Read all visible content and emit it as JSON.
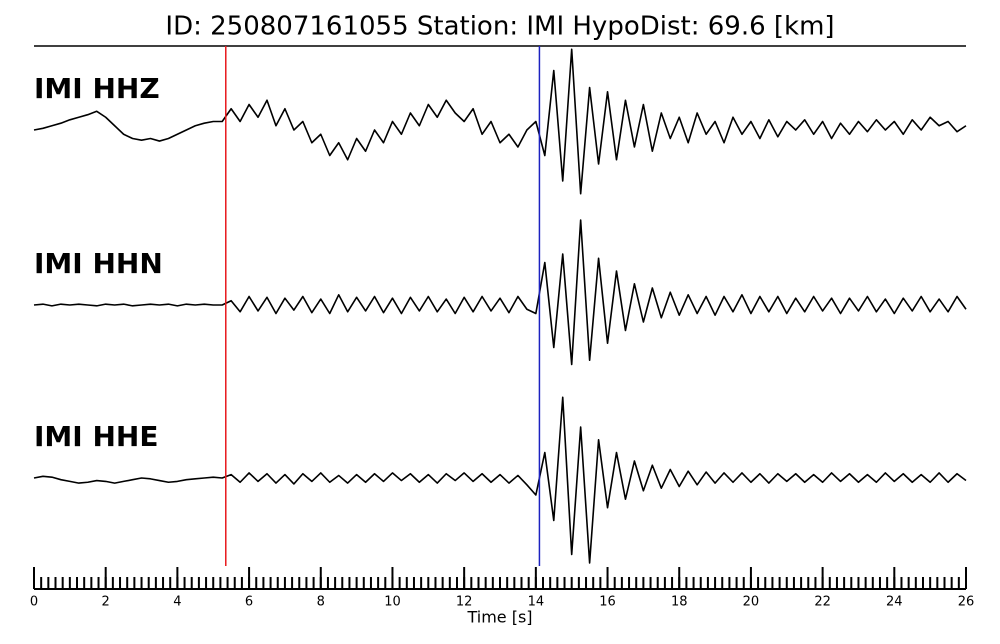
{
  "chart_data": {
    "type": "seismogram",
    "title": "ID: 250807161055   Station: IMI   HypoDist:     69.6 [km]",
    "xlabel": "Time [s]",
    "xlim": [
      0,
      26
    ],
    "xticks": [
      0,
      2,
      4,
      6,
      8,
      10,
      12,
      14,
      16,
      18,
      20,
      22,
      24,
      26
    ],
    "minor_tick_step": 0.2,
    "ylim": [
      -1,
      1
    ],
    "label_color": "#4e9a06",
    "picks": [
      {
        "time": 5.35,
        "color": "#e8191c"
      },
      {
        "time": 14.1,
        "color": "#1c22c0"
      }
    ],
    "x": [
      0,
      0.25,
      0.5,
      0.75,
      1,
      1.25,
      1.5,
      1.75,
      2,
      2.25,
      2.5,
      2.75,
      3,
      3.25,
      3.5,
      3.75,
      4,
      4.25,
      4.5,
      4.75,
      5,
      5.25,
      5.5,
      5.75,
      6,
      6.25,
      6.5,
      6.75,
      7,
      7.25,
      7.5,
      7.75,
      8,
      8.25,
      8.5,
      8.75,
      9,
      9.25,
      9.5,
      9.75,
      10,
      10.25,
      10.5,
      10.75,
      11,
      11.25,
      11.5,
      11.75,
      12,
      12.25,
      12.5,
      12.75,
      13,
      13.25,
      13.5,
      13.75,
      14,
      14.25,
      14.5,
      14.75,
      15,
      15.25,
      15.5,
      15.75,
      16,
      16.25,
      16.5,
      16.75,
      17,
      17.25,
      17.5,
      17.75,
      18,
      18.25,
      18.5,
      18.75,
      19,
      19.25,
      19.5,
      19.75,
      20,
      20.25,
      20.5,
      20.75,
      21,
      21.25,
      21.5,
      21.75,
      22,
      22.25,
      22.5,
      22.75,
      23,
      23.25,
      23.5,
      23.75,
      24,
      24.25,
      24.5,
      24.75,
      25,
      25.25,
      25.5,
      25.75,
      26
    ],
    "series": [
      {
        "name": "IMI HHZ",
        "color": "#000000",
        "values": [
          0,
          0.02,
          0.05,
          0.08,
          0.12,
          0.15,
          0.18,
          0.22,
          0.15,
          0.05,
          -0.05,
          -0.1,
          -0.12,
          -0.1,
          -0.13,
          -0.1,
          -0.05,
          0.0,
          0.05,
          0.08,
          0.1,
          0.1,
          0.25,
          0.1,
          0.3,
          0.15,
          0.35,
          0.05,
          0.25,
          0.0,
          0.1,
          -0.15,
          -0.05,
          -0.3,
          -0.15,
          -0.35,
          -0.1,
          -0.25,
          0.0,
          -0.15,
          0.1,
          -0.05,
          0.2,
          0.05,
          0.3,
          0.15,
          0.35,
          0.2,
          0.1,
          0.25,
          -0.05,
          0.1,
          -0.15,
          -0.05,
          -0.2,
          0.0,
          0.1,
          -0.3,
          0.7,
          -0.6,
          0.95,
          -0.75,
          0.5,
          -0.4,
          0.45,
          -0.35,
          0.35,
          -0.2,
          0.3,
          -0.25,
          0.2,
          -0.1,
          0.15,
          -0.15,
          0.2,
          -0.05,
          0.1,
          -0.15,
          0.15,
          -0.05,
          0.1,
          -0.1,
          0.12,
          -0.08,
          0.1,
          0.0,
          0.12,
          -0.05,
          0.1,
          -0.1,
          0.08,
          -0.05,
          0.1,
          -0.02,
          0.12,
          0.0,
          0.1,
          -0.05,
          0.12,
          0.0,
          0.15,
          0.05,
          0.1,
          -0.02,
          0.05
        ]
      },
      {
        "name": "IMI HHN",
        "color": "#000000",
        "values": [
          0,
          0.01,
          -0.01,
          0.01,
          0,
          0.01,
          0,
          -0.01,
          0.01,
          0,
          0.01,
          -0.01,
          0,
          0.01,
          0,
          0.01,
          -0.01,
          0.01,
          0,
          0.01,
          0,
          0,
          0.05,
          -0.08,
          0.1,
          -0.07,
          0.09,
          -0.1,
          0.08,
          -0.06,
          0.1,
          -0.09,
          0.07,
          -0.1,
          0.12,
          -0.08,
          0.09,
          -0.07,
          0.1,
          -0.09,
          0.08,
          -0.1,
          0.09,
          -0.07,
          0.1,
          -0.08,
          0.07,
          -0.1,
          0.09,
          -0.08,
          0.1,
          -0.07,
          0.08,
          -0.09,
          0.1,
          -0.05,
          -0.1,
          0.5,
          -0.5,
          0.6,
          -0.7,
          1.0,
          -0.65,
          0.55,
          -0.45,
          0.4,
          -0.3,
          0.25,
          -0.2,
          0.2,
          -0.15,
          0.15,
          -0.12,
          0.12,
          -0.1,
          0.1,
          -0.12,
          0.1,
          -0.08,
          0.12,
          -0.1,
          0.1,
          -0.08,
          0.1,
          -0.1,
          0.08,
          -0.08,
          0.1,
          -0.07,
          0.08,
          -0.1,
          0.08,
          -0.07,
          0.1,
          -0.08,
          0.07,
          -0.1,
          0.08,
          -0.07,
          0.1,
          -0.08,
          0.07,
          -0.08,
          0.1,
          -0.05
        ]
      },
      {
        "name": "IMI HHE",
        "color": "#000000",
        "values": [
          0,
          0.02,
          0.01,
          -0.02,
          -0.04,
          -0.06,
          -0.05,
          -0.03,
          -0.04,
          -0.06,
          -0.04,
          -0.02,
          0,
          -0.01,
          -0.03,
          -0.05,
          -0.04,
          -0.02,
          -0.01,
          0,
          0.01,
          0,
          0.04,
          -0.05,
          0.06,
          -0.04,
          0.05,
          -0.06,
          0.04,
          -0.07,
          0.05,
          -0.04,
          0.06,
          -0.05,
          0.03,
          -0.06,
          0.04,
          -0.05,
          0.05,
          -0.04,
          0.06,
          -0.03,
          0.05,
          -0.05,
          0.04,
          -0.06,
          0.05,
          -0.03,
          0.06,
          -0.04,
          0.05,
          -0.05,
          0.04,
          -0.06,
          0.03,
          -0.08,
          -0.2,
          0.3,
          -0.5,
          0.95,
          -0.9,
          0.6,
          -1.0,
          0.45,
          -0.35,
          0.3,
          -0.25,
          0.2,
          -0.15,
          0.15,
          -0.12,
          0.1,
          -0.1,
          0.08,
          -0.08,
          0.07,
          -0.06,
          0.06,
          -0.05,
          0.06,
          -0.05,
          0.05,
          -0.06,
          0.05,
          -0.04,
          0.05,
          -0.05,
          0.04,
          -0.05,
          0.06,
          -0.04,
          0.05,
          -0.05,
          0.04,
          -0.05,
          0.06,
          -0.04,
          0.05,
          -0.05,
          0.04,
          -0.05,
          0.06,
          -0.05,
          0.05,
          -0.03
        ]
      }
    ]
  }
}
